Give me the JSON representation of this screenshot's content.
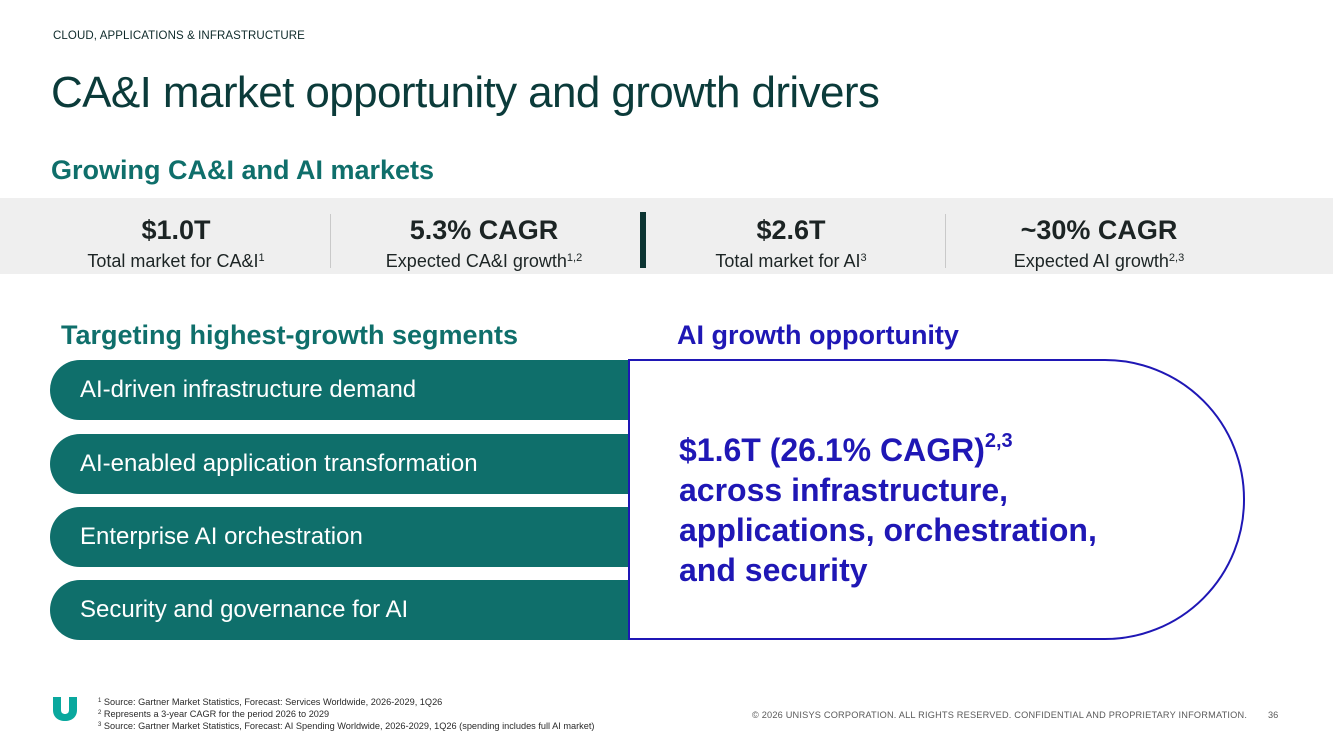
{
  "eyebrow": "CLOUD, APPLICATIONS & INFRASTRUCTURE",
  "title": "CA&I market opportunity and growth drivers",
  "subtitle": "Growing CA&I and AI markets",
  "stats": [
    {
      "value": "$1.0T",
      "label": "Total market for CA&I",
      "sup": "1"
    },
    {
      "value": "5.3% CAGR",
      "label": "Expected CA&I growth",
      "sup": "1,2"
    },
    {
      "value": "$2.6T",
      "label": "Total market for AI",
      "sup": "3"
    },
    {
      "value": "~30% CAGR",
      "label": "Expected AI growth",
      "sup": "2,3"
    }
  ],
  "segments": {
    "heading": "Targeting highest-growth segments",
    "items": [
      "AI-driven infrastructure demand",
      "AI-enabled application transformation",
      "Enterprise AI orchestration",
      "Security and governance for AI"
    ]
  },
  "ai": {
    "heading": "AI growth opportunity",
    "headline": "$1.6T  (26.1% CAGR)",
    "headline_sup": "2,3",
    "lines": [
      "across infrastructure,",
      "applications, orchestration,",
      "and security"
    ]
  },
  "footer": {
    "footnotes": [
      {
        "num": "1",
        "text": "Source: Gartner Market Statistics, Forecast: Services Worldwide, 2026-2029, 1Q26"
      },
      {
        "num": "2",
        "text": "Represents a 3-year CAGR for the period 2026 to 2029"
      },
      {
        "num": "3",
        "text": "Source: Gartner Market Statistics, Forecast: AI Spending Worldwide, 2026-2029, 1Q26 (spending includes full AI market)"
      }
    ],
    "copyright": "© 2026 UNISYS CORPORATION. ALL RIGHTS RESERVED. CONFIDENTIAL AND PROPRIETARY INFORMATION.",
    "page_number": "36"
  },
  "colors": {
    "teal": "#0f6f6b",
    "dark_green": "#0b3b3a",
    "blue": "#1f17b5",
    "band_gray": "#efefef"
  },
  "logo_icon": "unisys-logo-icon"
}
